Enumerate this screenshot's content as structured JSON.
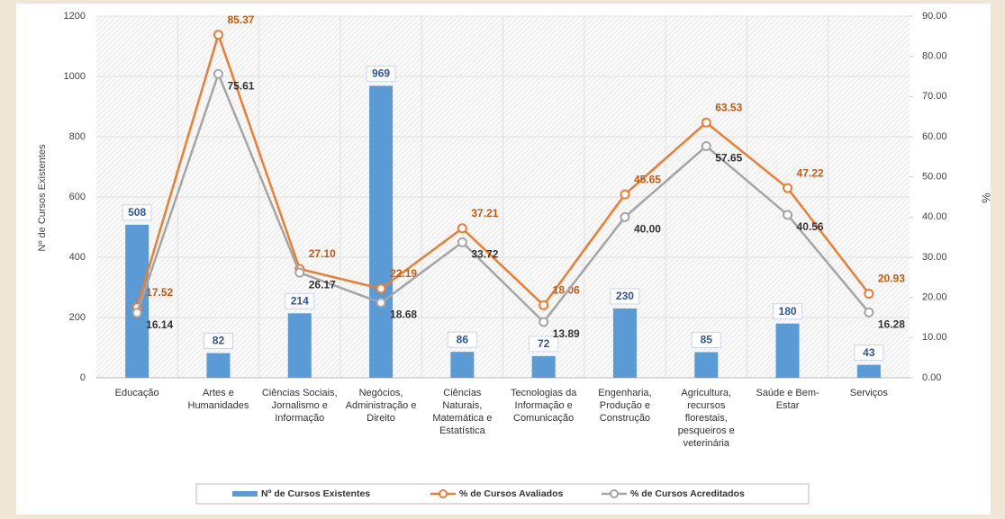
{
  "chart_data": {
    "type": "combo",
    "y_label": "Nº de Cursos Existentes",
    "y2_label": "%",
    "categories": [
      "Educação",
      "Artes e Humanidades",
      "Ciências Sociais, Jornalismo e Informação",
      "Negócios, Administração e Direito",
      "Ciências Naturais, Matemática e Estatística",
      "Tecnologias da Informação e Comunicação",
      "Engenharia, Produção e Construção",
      "Agricultura, recursos florestais, pesqueiros e veterinária",
      "Saúde e Bem-Estar",
      "Serviços"
    ],
    "series": [
      {
        "name": "Nº de Cursos Existentes",
        "type": "bar",
        "axis": "y",
        "color": "#5b9bd5",
        "values": [
          508,
          82,
          214,
          969,
          86,
          72,
          230,
          85,
          180,
          43
        ]
      },
      {
        "name": "% de Cursos Avaliados",
        "type": "line",
        "axis": "y2",
        "color": "#ed7d31",
        "values": [
          17.52,
          85.37,
          27.1,
          22.19,
          37.21,
          18.06,
          45.65,
          63.53,
          47.22,
          20.93
        ],
        "value_labels": [
          "17.52",
          "85.37",
          "27.10",
          "22.19",
          "37.21",
          "18.06",
          "45.65",
          "63.53",
          "47.22",
          "20.93"
        ]
      },
      {
        "name": "% de Cursos Acreditados",
        "type": "line",
        "axis": "y2",
        "color": "#a5a5a5",
        "values": [
          16.14,
          75.61,
          26.17,
          18.68,
          33.72,
          13.89,
          40.0,
          57.65,
          40.56,
          16.28
        ],
        "value_labels": [
          "16.14",
          "75.61",
          "26.17",
          "18.68",
          "33.72",
          "13.89",
          "40.00",
          "57.65",
          "40.56",
          "16.28"
        ]
      }
    ],
    "ylim": [
      0,
      1200
    ],
    "yticks": [
      0,
      200,
      400,
      600,
      800,
      1000,
      1200
    ],
    "y2lim": [
      0,
      90
    ],
    "y2ticks": [
      {
        "value": 0,
        "label": "0.00"
      },
      {
        "value": 10,
        "label": "10.00"
      },
      {
        "value": 20,
        "label": "20.00"
      },
      {
        "value": 30,
        "label": "30.00"
      },
      {
        "value": 40,
        "label": "40.00"
      },
      {
        "value": 50,
        "label": "50.00"
      },
      {
        "value": 60,
        "label": "60.00"
      },
      {
        "value": 70,
        "label": "70.00"
      },
      {
        "value": 80,
        "label": "80.00"
      },
      {
        "value": 90,
        "label": "90.00"
      }
    ],
    "legend": "bottom"
  }
}
